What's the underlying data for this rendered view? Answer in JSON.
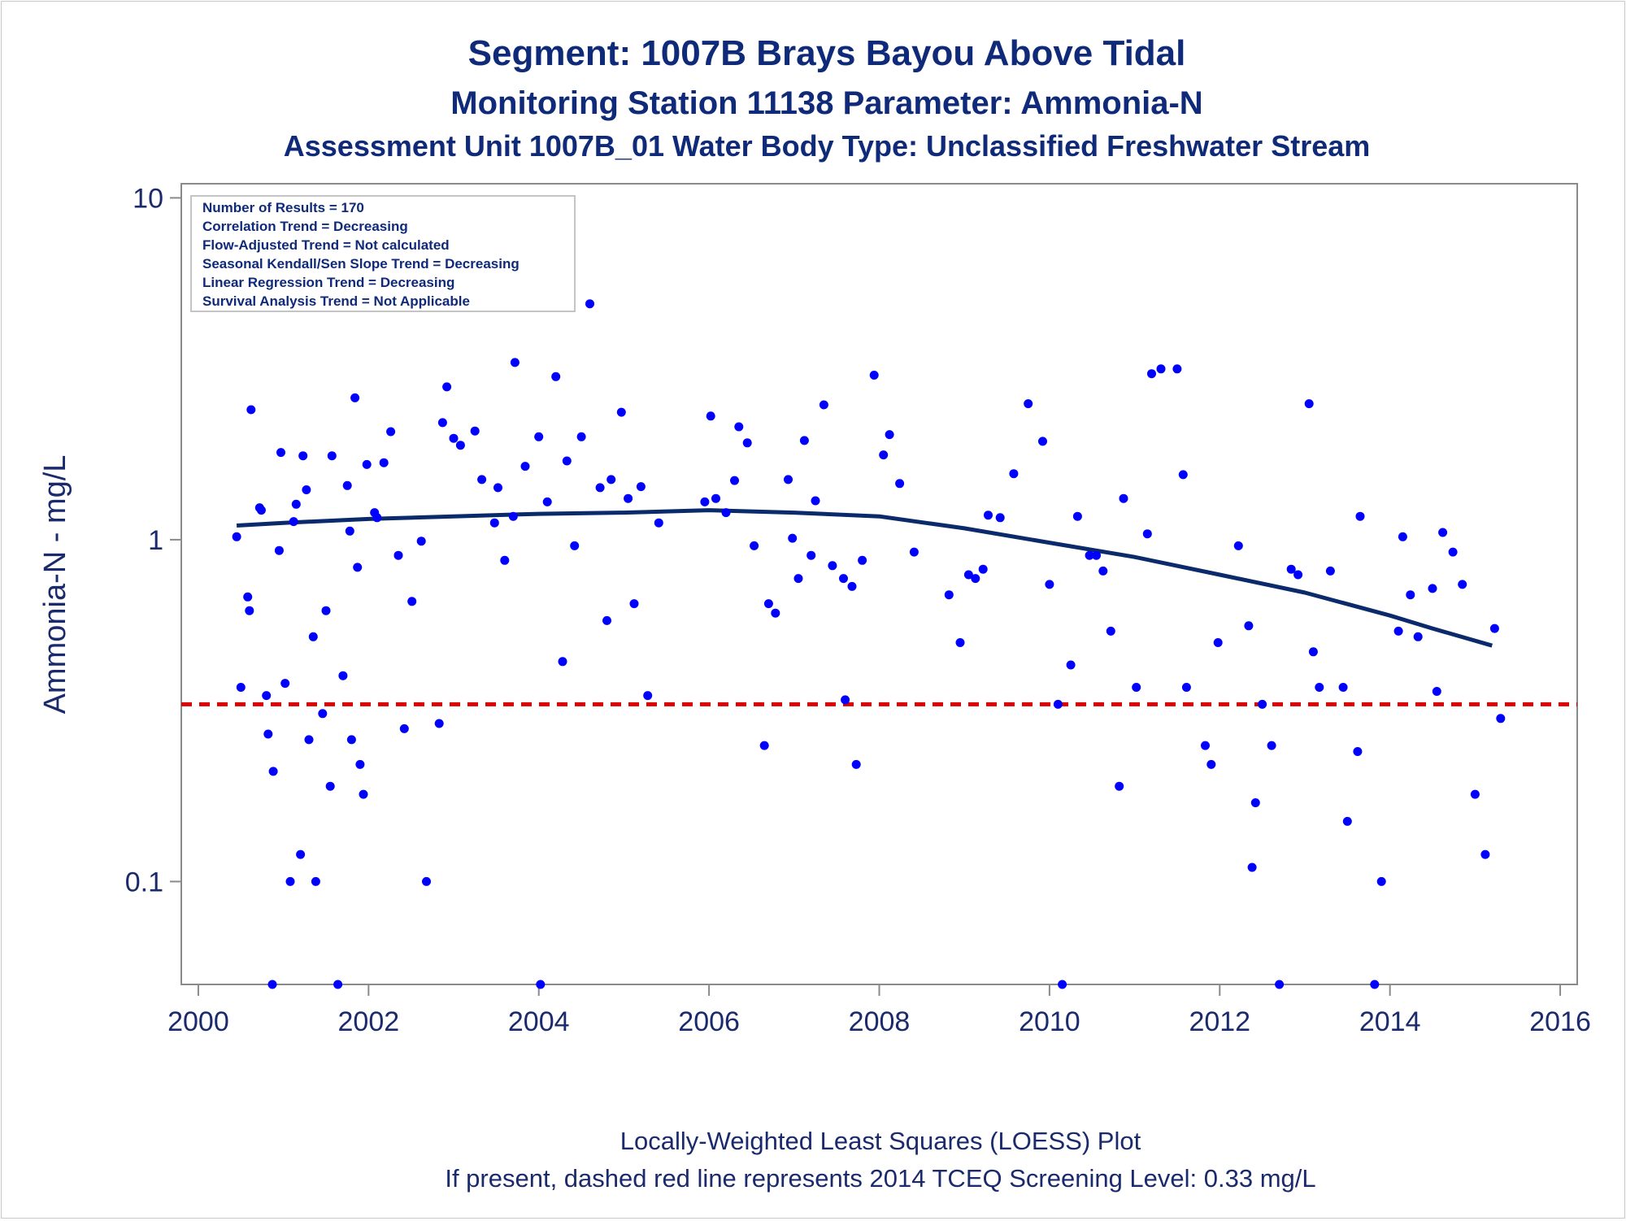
{
  "chart_data": {
    "type": "scatter",
    "title": "Segment: 1007B  Brays Bayou Above Tidal",
    "subtitle": "Monitoring Station 11138 Parameter: Ammonia-N",
    "subtitle2": "Assessment Unit 1007B_01   Water Body Type: Unclassified Freshwater Stream",
    "xlabel": "",
    "ylabel": "Ammonia-N - mg/L",
    "y_scale": "log",
    "xlim": [
      1999.8,
      2016.2
    ],
    "ylim": [
      0.05,
      11
    ],
    "x_ticks": [
      2000,
      2002,
      2004,
      2006,
      2008,
      2010,
      2012,
      2014,
      2016
    ],
    "y_ticks": [
      {
        "value": 0.1,
        "label": "0.1"
      },
      {
        "value": 1,
        "label": "1"
      },
      {
        "value": 10,
        "label": "10"
      }
    ],
    "grid": false,
    "legend": "none",
    "inset_box": {
      "placement": "top-left",
      "lines": [
        "Number of Results = 170",
        "Correlation Trend = Decreasing",
        "Flow-Adjusted Trend = Not calculated",
        "Seasonal Kendall/Sen Slope Trend = Decreasing",
        "Linear Regression Trend = Decreasing",
        "Survival Analysis Trend = Not Applicable"
      ]
    },
    "screening_level": {
      "value": 0.33,
      "color": "#dd0000",
      "style": "dashed"
    },
    "loess": {
      "color": "#0a2a6c",
      "x": [
        2000.45,
        2001,
        2002,
        2003,
        2004,
        2005,
        2006,
        2007,
        2008,
        2009,
        2010,
        2011,
        2012,
        2013,
        2014,
        2014.5,
        2015.2
      ],
      "y": [
        1.1,
        1.12,
        1.15,
        1.17,
        1.19,
        1.2,
        1.22,
        1.2,
        1.17,
        1.08,
        0.98,
        0.89,
        0.79,
        0.7,
        0.6,
        0.55,
        0.49
      ]
    },
    "points_color": "#0000ff",
    "series": [
      {
        "x": [
          2000.45,
          2000.5,
          2000.55,
          2000.58,
          2000.6,
          2000.62,
          2000.72,
          2000.74,
          2000.8,
          2000.82,
          2000.87,
          2000.88,
          2000.95,
          2000.97,
          2001.02,
          2001.08,
          2001.12,
          2001.15,
          2001.2,
          2001.23,
          2001.27,
          2001.3,
          2001.35,
          2001.38,
          2001.46,
          2001.5,
          2001.55,
          2001.57,
          2001.64,
          2001.7,
          2001.75,
          2001.78,
          2001.8,
          2001.84,
          2001.87,
          2001.9,
          2001.94,
          2001.98,
          2002.07,
          2002.1,
          2002.18,
          2002.26,
          2002.35,
          2002.42,
          2002.51,
          2002.62,
          2002.68,
          2002.83,
          2002.87,
          2002.92,
          2003.0,
          2003.08,
          2003.25,
          2003.33,
          2003.48,
          2003.52,
          2003.6,
          2003.7,
          2003.72,
          2003.84,
          2004.0,
          2004.02,
          2004.1,
          2004.2,
          2004.28,
          2004.33,
          2004.42,
          2004.5,
          2004.6,
          2004.72,
          2004.8,
          2004.85,
          2004.97,
          2005.05,
          2005.12,
          2005.2,
          2005.28,
          2005.41,
          2005.95,
          2006.02,
          2006.08,
          2006.2,
          2006.3,
          2006.35,
          2006.45,
          2006.53,
          2006.65,
          2006.7,
          2006.78,
          2006.93,
          2006.98,
          2007.05,
          2007.12,
          2007.2,
          2007.25,
          2007.35,
          2007.45,
          2007.58,
          2007.6,
          2007.68,
          2007.73,
          2007.8,
          2007.94,
          2008.05,
          2008.12,
          2008.24,
          2008.41,
          2008.82,
          2008.95,
          2009.05,
          2009.13,
          2009.22,
          2009.28,
          2009.42,
          2009.58,
          2009.75,
          2009.92,
          2010.0,
          2010.1,
          2010.15,
          2010.25,
          2010.33,
          2010.47,
          2010.55,
          2010.63,
          2010.72,
          2010.82,
          2010.87,
          2011.02,
          2011.15,
          2011.2,
          2011.31,
          2011.5,
          2011.57,
          2011.61,
          2011.83,
          2011.9,
          2011.98,
          2012.22,
          2012.34,
          2012.38,
          2012.42,
          2012.5,
          2012.61,
          2012.7,
          2012.84,
          2012.92,
          2013.05,
          2013.1,
          2013.17,
          2013.3,
          2013.45,
          2013.5,
          2013.62,
          2013.65,
          2013.82,
          2013.9,
          2014.1,
          2014.15,
          2014.24,
          2014.33,
          2014.5,
          2014.55,
          2014.62,
          2014.74,
          2014.85,
          2015.0,
          2015.12,
          2015.23,
          2015.3
        ],
        "y": [
          1.02,
          0.37,
          5.4,
          0.68,
          0.62,
          2.4,
          1.24,
          1.22,
          0.35,
          0.27,
          0.05,
          0.21,
          0.93,
          1.8,
          0.38,
          0.1,
          1.13,
          1.27,
          0.12,
          1.76,
          1.4,
          0.26,
          0.52,
          0.1,
          0.31,
          0.62,
          0.19,
          1.76,
          0.05,
          0.4,
          1.44,
          1.06,
          0.26,
          2.6,
          0.83,
          0.22,
          0.18,
          1.66,
          1.2,
          1.16,
          1.68,
          2.07,
          0.9,
          0.28,
          0.66,
          0.99,
          0.1,
          0.29,
          2.2,
          2.8,
          1.98,
          1.89,
          2.08,
          1.5,
          1.12,
          1.42,
          0.87,
          1.17,
          3.3,
          1.64,
          2.0,
          0.05,
          1.29,
          3.0,
          0.44,
          1.7,
          0.96,
          2.0,
          4.9,
          1.42,
          0.58,
          1.5,
          2.36,
          1.32,
          0.65,
          1.43,
          0.35,
          1.12,
          1.29,
          2.3,
          1.32,
          1.2,
          1.49,
          2.14,
          1.92,
          0.96,
          0.25,
          0.65,
          0.61,
          1.5,
          1.01,
          0.77,
          1.95,
          0.9,
          1.3,
          2.48,
          0.84,
          0.77,
          0.34,
          0.73,
          0.22,
          0.87,
          3.03,
          1.77,
          2.03,
          1.46,
          0.92,
          0.69,
          0.5,
          0.79,
          0.77,
          0.82,
          1.18,
          1.16,
          1.56,
          2.5,
          1.94,
          0.74,
          0.33,
          0.05,
          0.43,
          1.17,
          0.9,
          0.9,
          0.81,
          0.54,
          0.19,
          1.32,
          0.37,
          1.04,
          3.06,
          3.16,
          3.16,
          1.55,
          0.37,
          0.25,
          0.22,
          0.5,
          0.96,
          0.56,
          0.11,
          0.17,
          0.33,
          0.25,
          0.05,
          0.82,
          0.79,
          2.5,
          0.47,
          0.37,
          0.81,
          0.37,
          0.15,
          0.24,
          1.17,
          0.05,
          0.1,
          0.54,
          1.02,
          0.69,
          0.52,
          0.72,
          0.36,
          1.05,
          0.92,
          0.74,
          0.18,
          0.12,
          0.55,
          0.3
        ]
      }
    ],
    "footnotes": [
      "Locally-Weighted Least Squares (LOESS) Plot",
      "If present, dashed red line represents 2014 TCEQ Screening Level: 0.33 mg/L"
    ]
  }
}
